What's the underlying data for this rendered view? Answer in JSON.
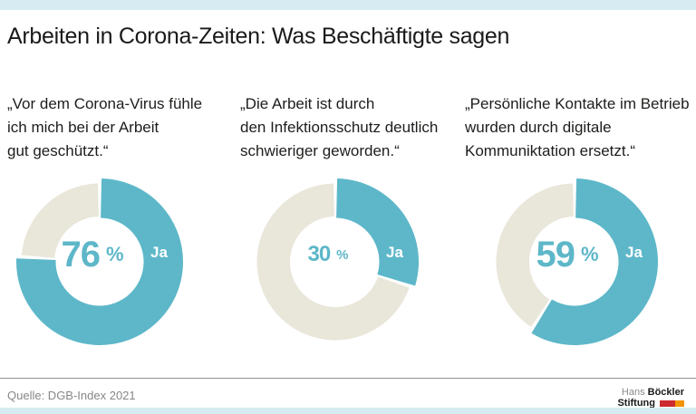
{
  "title": "Arbeiten in Corona-Zeiten: Was Beschäftigte sagen",
  "colors": {
    "accent_teal": "#5db7c9",
    "rest_beige": "#e9e6da",
    "frame_blue": "#d7ebf2",
    "text_dark": "#1d1d1b",
    "text_gray": "#878787",
    "logo_red": "#cc2a2e",
    "logo_orange": "#f29400"
  },
  "charts": [
    {
      "quote_lines": [
        "„Vor dem Corona-Virus fühle",
        "ich mich bei der Arbeit",
        "gut geschützt.“"
      ],
      "value_display": "76",
      "unit": "%",
      "yes_label": "Ja"
    },
    {
      "quote_lines": [
        "„Die Arbeit ist durch",
        "den Infektionsschutz deutlich",
        "schwieriger geworden.“"
      ],
      "value_display": "30",
      "unit": "%",
      "yes_label": "Ja"
    },
    {
      "quote_lines": [
        "„Persönliche Kontakte im Betrieb",
        "wurden durch digitale",
        "Kommuniktation ersetzt.“"
      ],
      "value_display": "59",
      "unit": "%",
      "yes_label": "Ja"
    }
  ],
  "footer": {
    "source": "Quelle: DGB-Index 2021",
    "logo_line1_gray": "Hans",
    "logo_line1_bold": "Böckler",
    "logo_line2_bold": "Stiftung"
  },
  "chart_data": [
    {
      "type": "pie",
      "subtype": "donut",
      "title": "„Vor dem Corona-Virus fühle ich mich bei der Arbeit gut geschützt.“",
      "categories": [
        "Ja",
        ""
      ],
      "values": [
        76,
        24
      ],
      "unit": "%",
      "center_label": "76 %",
      "segment_colors": [
        "#5db7c9",
        "#e9e6da"
      ],
      "start_angle": "top",
      "direction": "clockwise"
    },
    {
      "type": "pie",
      "subtype": "donut",
      "title": "„Die Arbeit ist durch den Infektionsschutz deutlich schwieriger geworden.“",
      "categories": [
        "Ja",
        ""
      ],
      "values": [
        30,
        70
      ],
      "unit": "%",
      "center_label": "30 %",
      "segment_colors": [
        "#5db7c9",
        "#e9e6da"
      ],
      "start_angle": "top",
      "direction": "clockwise"
    },
    {
      "type": "pie",
      "subtype": "donut",
      "title": "„Persönliche Kontakte im Betrieb wurden durch digitale Kommuniktation ersetzt.“",
      "categories": [
        "Ja",
        ""
      ],
      "values": [
        59,
        41
      ],
      "unit": "%",
      "center_label": "59 %",
      "segment_colors": [
        "#5db7c9",
        "#e9e6da"
      ],
      "start_angle": "top",
      "direction": "clockwise"
    }
  ]
}
